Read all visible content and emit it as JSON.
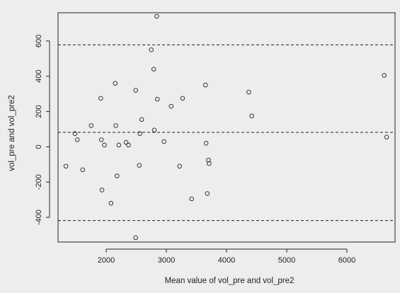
{
  "chart_data": {
    "type": "scatter",
    "title": "",
    "xlabel": "Mean value of vol_pre and vol_pre2",
    "ylabel": "vol_pre and vol_pre2",
    "xlim": [
      1200,
      6800
    ],
    "ylim": [
      -540,
      760
    ],
    "x_ticks": [
      2000,
      3000,
      4000,
      5000,
      6000
    ],
    "y_ticks": [
      -400,
      -200,
      0,
      200,
      400,
      600
    ],
    "grid": false,
    "reference_lines": [
      {
        "label": "upper limit",
        "y": 578
      },
      {
        "label": "mean difference",
        "y": 82
      },
      {
        "label": "lower limit",
        "y": -418
      }
    ],
    "points": [
      {
        "x": 1330,
        "y": -110
      },
      {
        "x": 1480,
        "y": 75
      },
      {
        "x": 1520,
        "y": 40
      },
      {
        "x": 1610,
        "y": -130
      },
      {
        "x": 1750,
        "y": 120
      },
      {
        "x": 1910,
        "y": 275
      },
      {
        "x": 1920,
        "y": 40
      },
      {
        "x": 1930,
        "y": -245
      },
      {
        "x": 1970,
        "y": 10
      },
      {
        "x": 2080,
        "y": -320
      },
      {
        "x": 2150,
        "y": 360
      },
      {
        "x": 2160,
        "y": 120
      },
      {
        "x": 2180,
        "y": -165
      },
      {
        "x": 2210,
        "y": 10
      },
      {
        "x": 2330,
        "y": 25
      },
      {
        "x": 2370,
        "y": 10
      },
      {
        "x": 2490,
        "y": 320
      },
      {
        "x": 2490,
        "y": -515
      },
      {
        "x": 2550,
        "y": -105
      },
      {
        "x": 2560,
        "y": 75
      },
      {
        "x": 2590,
        "y": 155
      },
      {
        "x": 2750,
        "y": 550
      },
      {
        "x": 2790,
        "y": 440
      },
      {
        "x": 2800,
        "y": 95
      },
      {
        "x": 2840,
        "y": 740
      },
      {
        "x": 2850,
        "y": 270
      },
      {
        "x": 2960,
        "y": 30
      },
      {
        "x": 3080,
        "y": 230
      },
      {
        "x": 3220,
        "y": -110
      },
      {
        "x": 3270,
        "y": 275
      },
      {
        "x": 3420,
        "y": -295
      },
      {
        "x": 3650,
        "y": 350
      },
      {
        "x": 3660,
        "y": 20
      },
      {
        "x": 3680,
        "y": -265
      },
      {
        "x": 3700,
        "y": -75
      },
      {
        "x": 3710,
        "y": -95
      },
      {
        "x": 4370,
        "y": 310
      },
      {
        "x": 4420,
        "y": 175
      },
      {
        "x": 6620,
        "y": 405
      },
      {
        "x": 6660,
        "y": 55
      }
    ]
  }
}
